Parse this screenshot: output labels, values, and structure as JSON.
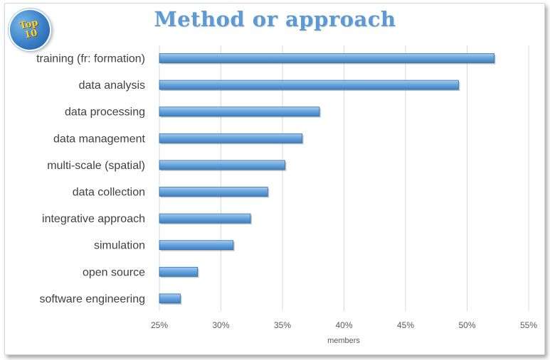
{
  "badge": {
    "line1": "Top",
    "line2": "10"
  },
  "chart_data": {
    "type": "bar",
    "orientation": "horizontal",
    "title": "Method or approach",
    "xlabel": "members",
    "ylabel": "",
    "xlim": [
      0.25,
      0.55
    ],
    "x_ticks": [
      0.25,
      0.3,
      0.35,
      0.4,
      0.45,
      0.5,
      0.55
    ],
    "x_tick_labels": [
      "25%",
      "30%",
      "35%",
      "40%",
      "45%",
      "50%",
      "55%"
    ],
    "grid": true,
    "legend": "none",
    "categories": [
      "training (fr: formation)",
      "data analysis",
      "data processing",
      "data management",
      "multi-scale (spatial)",
      "data collection",
      "integrative approach",
      "simulation",
      "open source",
      "software engineering"
    ],
    "values": [
      0.522,
      0.493,
      0.38,
      0.366,
      0.352,
      0.338,
      0.324,
      0.31,
      0.281,
      0.267
    ],
    "bar_color": "#5b9bd5",
    "title_color": "#5b9bd5"
  }
}
